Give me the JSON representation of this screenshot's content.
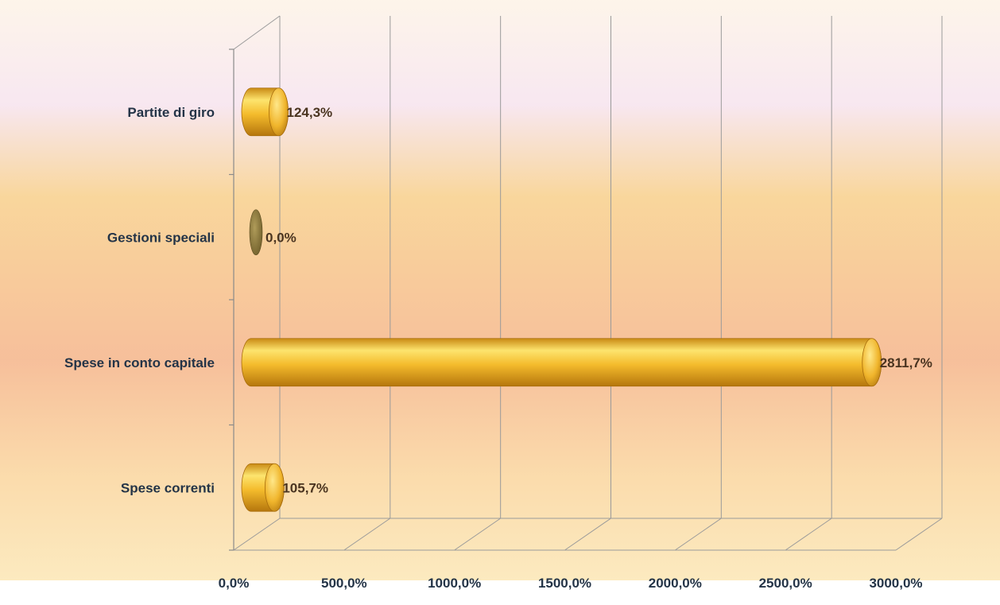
{
  "chart_data": {
    "type": "bar",
    "orientation": "horizontal",
    "style": "3d-cylinder",
    "categories": [
      "Spese correnti",
      "Spese in conto capitale",
      "Gestioni speciali",
      "Partite di giro"
    ],
    "values": [
      105.7,
      2811.7,
      0.0,
      124.3
    ],
    "data_labels": [
      "105,7%",
      "2811,7%",
      "0,0%",
      "124,3%"
    ],
    "xlim": [
      0,
      3000
    ],
    "xticks": [
      0,
      500,
      1000,
      1500,
      2000,
      2500,
      3000
    ],
    "xtick_labels": [
      "0,0%",
      "500,0%",
      "1000,0%",
      "1500,0%",
      "2000,0%",
      "2500,0%",
      "3000,0%"
    ],
    "grid": true,
    "legend": "none",
    "colors": {
      "bar": "#f2b62a",
      "bar_highlight": "#fde879",
      "bar_shadow": "#b6790e",
      "zero_bar": "#8f7a3a",
      "text": "#243447",
      "data_label": "#4a3420",
      "grid": "#9a9a9a",
      "background_top": "#fbe9c9",
      "background_band": "#f7c99a",
      "background_bottom": "#fbe7b8"
    }
  }
}
